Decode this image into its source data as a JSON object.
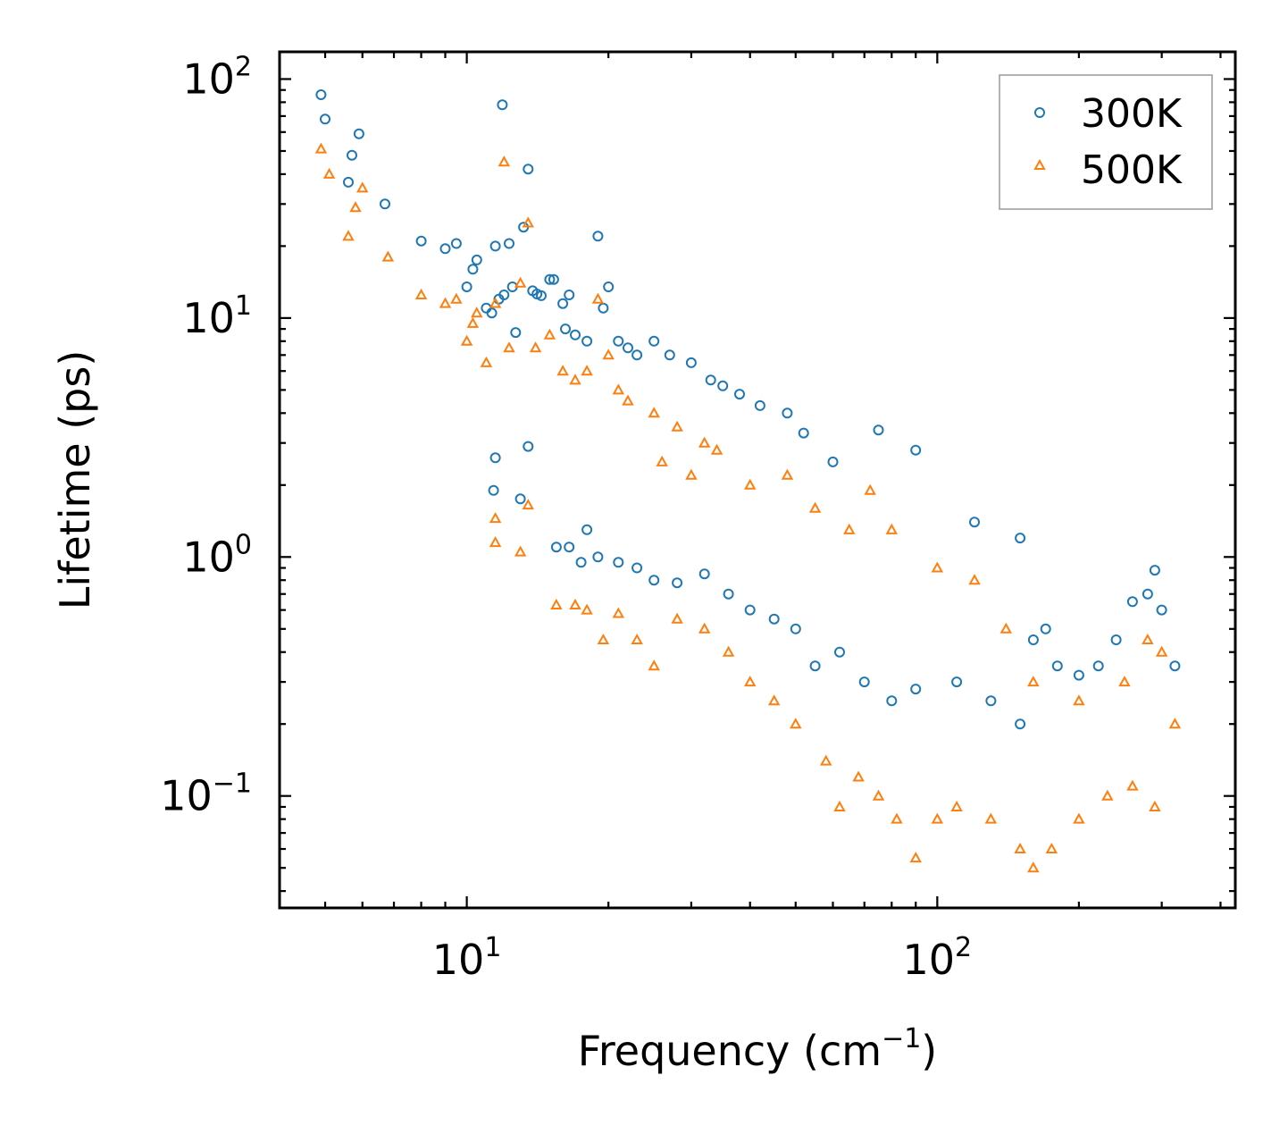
{
  "chart_data": {
    "type": "scatter",
    "title": "",
    "xlabel": "Frequency (cm",
    "xlabel_sup": "−1",
    "xlabel_end": ")",
    "ylabel": "Lifetime (ps)",
    "xscale": "log",
    "yscale": "log",
    "xlim": [
      4,
      430
    ],
    "ylim": [
      0.034,
      130
    ],
    "x_ticks": [
      {
        "value": 10,
        "base": "10",
        "exp": "1"
      },
      {
        "value": 100,
        "base": "10",
        "exp": "2"
      }
    ],
    "y_ticks": [
      {
        "value": 100,
        "base": "10",
        "exp": "2"
      },
      {
        "value": 10,
        "base": "10",
        "exp": "1"
      },
      {
        "value": 1,
        "base": "10",
        "exp": "0"
      },
      {
        "value": 0.1,
        "base": "10",
        "exp": "−1"
      }
    ],
    "legend": {
      "position": "top-right"
    },
    "series": [
      {
        "name": "300K",
        "marker": "circle",
        "color": "#1f77b4",
        "points": [
          [
            4.9,
            86
          ],
          [
            5.0,
            68
          ],
          [
            5.6,
            37
          ],
          [
            5.7,
            48
          ],
          [
            5.9,
            59
          ],
          [
            6.7,
            30
          ],
          [
            8.0,
            21
          ],
          [
            9.0,
            19.5
          ],
          [
            9.5,
            20.5
          ],
          [
            10.0,
            13.5
          ],
          [
            10.3,
            16
          ],
          [
            10.5,
            17.5
          ],
          [
            11.0,
            11
          ],
          [
            11.3,
            10.5
          ],
          [
            11.5,
            20
          ],
          [
            11.7,
            12
          ],
          [
            11.9,
            78
          ],
          [
            12.3,
            20.5
          ],
          [
            12.0,
            12.5
          ],
          [
            12.5,
            13.5
          ],
          [
            12.7,
            8.7
          ],
          [
            13.2,
            24
          ],
          [
            13.5,
            42
          ],
          [
            13.8,
            13
          ],
          [
            14.1,
            12.6
          ],
          [
            14.4,
            12.4
          ],
          [
            15.0,
            14.5
          ],
          [
            15.3,
            14.5
          ],
          [
            16.0,
            11.5
          ],
          [
            16.5,
            12.5
          ],
          [
            16.2,
            9
          ],
          [
            17.0,
            8.5
          ],
          [
            18.0,
            8
          ],
          [
            19.0,
            22
          ],
          [
            19.5,
            11
          ],
          [
            20.0,
            13.5
          ],
          [
            21.0,
            8
          ],
          [
            22.0,
            7.5
          ],
          [
            23.0,
            7
          ],
          [
            25.0,
            8
          ],
          [
            27.0,
            7
          ],
          [
            30.0,
            6.5
          ],
          [
            33.0,
            5.5
          ],
          [
            35.0,
            5.2
          ],
          [
            38.0,
            4.8
          ],
          [
            42.0,
            4.3
          ],
          [
            48.0,
            4.0
          ],
          [
            52.0,
            3.3
          ],
          [
            60.0,
            2.5
          ],
          [
            75.0,
            3.4
          ],
          [
            90.0,
            2.8
          ],
          [
            120.0,
            1.4
          ],
          [
            150.0,
            1.2
          ],
          [
            290.0,
            0.88
          ],
          [
            11.5,
            2.6
          ],
          [
            11.4,
            1.9
          ],
          [
            13.0,
            1.75
          ],
          [
            13.5,
            2.9
          ],
          [
            15.5,
            1.1
          ],
          [
            16.5,
            1.1
          ],
          [
            17.5,
            0.95
          ],
          [
            18.0,
            1.3
          ],
          [
            19.0,
            1.0
          ],
          [
            21.0,
            0.95
          ],
          [
            23.0,
            0.9
          ],
          [
            25.0,
            0.8
          ],
          [
            28.0,
            0.78
          ],
          [
            32.0,
            0.85
          ],
          [
            36.0,
            0.7
          ],
          [
            40.0,
            0.6
          ],
          [
            45.0,
            0.55
          ],
          [
            50.0,
            0.5
          ],
          [
            55.0,
            0.35
          ],
          [
            62.0,
            0.4
          ],
          [
            70.0,
            0.3
          ],
          [
            80.0,
            0.25
          ],
          [
            90.0,
            0.28
          ],
          [
            110.0,
            0.3
          ],
          [
            130.0,
            0.25
          ],
          [
            150.0,
            0.2
          ],
          [
            160.0,
            0.45
          ],
          [
            170.0,
            0.5
          ],
          [
            180.0,
            0.35
          ],
          [
            200.0,
            0.32
          ],
          [
            220.0,
            0.35
          ],
          [
            240.0,
            0.45
          ],
          [
            260.0,
            0.65
          ],
          [
            280.0,
            0.7
          ],
          [
            300.0,
            0.6
          ],
          [
            320.0,
            0.35
          ]
        ]
      },
      {
        "name": "500K",
        "marker": "triangle",
        "color": "#ff7f0e",
        "points": [
          [
            4.9,
            51
          ],
          [
            5.1,
            40
          ],
          [
            5.6,
            22
          ],
          [
            5.8,
            29
          ],
          [
            6.0,
            35
          ],
          [
            6.8,
            18
          ],
          [
            8.0,
            12.5
          ],
          [
            9.0,
            11.5
          ],
          [
            9.5,
            12
          ],
          [
            10.0,
            8
          ],
          [
            10.3,
            9.5
          ],
          [
            10.5,
            10.5
          ],
          [
            11.0,
            6.5
          ],
          [
            11.5,
            11.5
          ],
          [
            12.0,
            45
          ],
          [
            12.3,
            7.5
          ],
          [
            13.0,
            14
          ],
          [
            13.5,
            25
          ],
          [
            14.0,
            7.5
          ],
          [
            15.0,
            8.5
          ],
          [
            16.0,
            6
          ],
          [
            17.0,
            5.5
          ],
          [
            18.0,
            6
          ],
          [
            19.0,
            12
          ],
          [
            20.0,
            7
          ],
          [
            21.0,
            5
          ],
          [
            22.0,
            4.5
          ],
          [
            25.0,
            4
          ],
          [
            28.0,
            3.5
          ],
          [
            32.0,
            3
          ],
          [
            11.5,
            1.15
          ],
          [
            11.5,
            1.45
          ],
          [
            13.0,
            1.05
          ],
          [
            13.5,
            1.65
          ],
          [
            15.5,
            0.63
          ],
          [
            17.0,
            0.63
          ],
          [
            18.0,
            0.6
          ],
          [
            19.5,
            0.45
          ],
          [
            21.0,
            0.58
          ],
          [
            23.0,
            0.45
          ],
          [
            25.0,
            0.35
          ],
          [
            28.0,
            0.55
          ],
          [
            32.0,
            0.5
          ],
          [
            36.0,
            0.4
          ],
          [
            40.0,
            0.3
          ],
          [
            45.0,
            0.25
          ],
          [
            50.0,
            0.2
          ],
          [
            58.0,
            0.14
          ],
          [
            62.0,
            0.09
          ],
          [
            68.0,
            0.12
          ],
          [
            75.0,
            0.1
          ],
          [
            82.0,
            0.08
          ],
          [
            90.0,
            0.055
          ],
          [
            100.0,
            0.08
          ],
          [
            110.0,
            0.09
          ],
          [
            130.0,
            0.08
          ],
          [
            150.0,
            0.06
          ],
          [
            160.0,
            0.05
          ],
          [
            175.0,
            0.06
          ],
          [
            200.0,
            0.08
          ],
          [
            230.0,
            0.1
          ],
          [
            260.0,
            0.11
          ],
          [
            290.0,
            0.09
          ],
          [
            320.0,
            0.2
          ],
          [
            26.0,
            2.5
          ],
          [
            30.0,
            2.2
          ],
          [
            34.0,
            2.8
          ],
          [
            40.0,
            2.0
          ],
          [
            48.0,
            2.2
          ],
          [
            55.0,
            1.6
          ],
          [
            65.0,
            1.3
          ],
          [
            72.0,
            1.9
          ],
          [
            80.0,
            1.3
          ],
          [
            100.0,
            0.9
          ],
          [
            120.0,
            0.8
          ],
          [
            140.0,
            0.5
          ],
          [
            160.0,
            0.3
          ],
          [
            200.0,
            0.25
          ],
          [
            250.0,
            0.3
          ],
          [
            280.0,
            0.45
          ],
          [
            300.0,
            0.4
          ]
        ]
      }
    ]
  }
}
